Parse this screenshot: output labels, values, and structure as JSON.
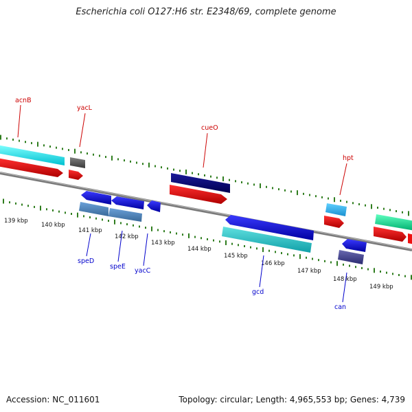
{
  "title": "Escherichia coli O127:H6 str. E2348/69, complete genome",
  "footer": {
    "accession": "Accession: NC_011601",
    "topology": "Topology: circular; Length: 4,965,553 bp; Genes: 4,739"
  },
  "ruler": {
    "unit": "kbp",
    "labels": [
      {
        "kbp": 139,
        "text": "139 kbp"
      },
      {
        "kbp": 140,
        "text": "140 kbp"
      },
      {
        "kbp": 141,
        "text": "141 kbp"
      },
      {
        "kbp": 142,
        "text": "142 kbp"
      },
      {
        "kbp": 143,
        "text": "143 kbp"
      },
      {
        "kbp": 144,
        "text": "144 kbp"
      },
      {
        "kbp": 145,
        "text": "145 kbp"
      },
      {
        "kbp": 146,
        "text": "146 kbp"
      },
      {
        "kbp": 147,
        "text": "147 kbp"
      },
      {
        "kbp": 148,
        "text": "148 kbp"
      },
      {
        "kbp": 149,
        "text": "149 kbp"
      }
    ]
  },
  "genes": [
    {
      "name": "acnB",
      "strand": "+",
      "color": "#cc0000"
    },
    {
      "name": "yacL",
      "strand": "+",
      "color": "#cc0000"
    },
    {
      "name": "speD",
      "strand": "-",
      "color": "#0000cc"
    },
    {
      "name": "speE",
      "strand": "-",
      "color": "#0000cc"
    },
    {
      "name": "yacC",
      "strand": "-",
      "color": "#0000cc"
    },
    {
      "name": "cueO",
      "strand": "+",
      "color": "#cc0000"
    },
    {
      "name": "gcd",
      "strand": "-",
      "color": "#0000cc"
    },
    {
      "name": "hpt",
      "strand": "+",
      "color": "#cc0000"
    },
    {
      "name": "can",
      "strand": "-",
      "color": "#0000cc"
    }
  ],
  "colors": {
    "backbone": "#8c8c8c",
    "ticks": "#2f7d1e",
    "forward_cds": "#ff0000",
    "reverse_cds": "#0000ff",
    "label_forward": "#cc0000",
    "label_reverse": "#0000cc",
    "feature_cyan": "#00ffff",
    "feature_gray": "#555555",
    "feature_navy": "#000080",
    "feature_lightblue": "#29b6f6",
    "feature_steelblue": "#4682b4",
    "feature_teal": "#20c0c0",
    "feature_slate": "#3a3a88",
    "feature_green": "#00e08a"
  }
}
